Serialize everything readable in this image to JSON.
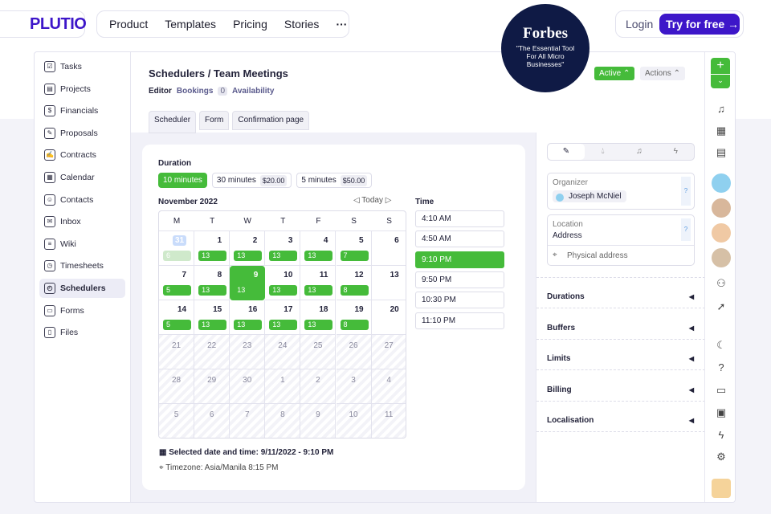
{
  "brand": {
    "logo": "PLUTIO"
  },
  "nav": {
    "items": [
      "Product",
      "Templates",
      "Pricing",
      "Stories",
      "···"
    ],
    "login": "Login",
    "try": "Try for free →"
  },
  "forbes": {
    "name": "Forbes",
    "quote": "\"The Essential Tool For All Micro Businesses\""
  },
  "sidebar": {
    "items": [
      {
        "label": "Tasks",
        "icon": "☑"
      },
      {
        "label": "Projects",
        "icon": "▤"
      },
      {
        "label": "Financials",
        "icon": "$"
      },
      {
        "label": "Proposals",
        "icon": "✎"
      },
      {
        "label": "Contracts",
        "icon": "✍"
      },
      {
        "label": "Calendar",
        "icon": "▦"
      },
      {
        "label": "Contacts",
        "icon": "☺"
      },
      {
        "label": "Inbox",
        "icon": "✉"
      },
      {
        "label": "Wiki",
        "icon": "≡"
      },
      {
        "label": "Timesheets",
        "icon": "◷"
      },
      {
        "label": "Schedulers",
        "icon": "◴"
      },
      {
        "label": "Forms",
        "icon": "▭"
      },
      {
        "label": "Files",
        "icon": "▯"
      }
    ],
    "active": "Schedulers"
  },
  "header": {
    "breadcrumb": "Schedulers / Team Meetings",
    "editor": "Editor",
    "bookings": "Bookings",
    "bookings_count": "0",
    "availability": "Availability",
    "status": "Active ⌃",
    "actions": "Actions ⌃"
  },
  "tabs": [
    "Scheduler",
    "Form",
    "Confirmation page"
  ],
  "duration": {
    "label": "Duration",
    "options": [
      {
        "label": "10 minutes",
        "price": "",
        "selected": true
      },
      {
        "label": "30 minutes",
        "price": "$20.00"
      },
      {
        "label": "5 minutes",
        "price": "$50.00"
      }
    ]
  },
  "calendar": {
    "month": "November  2022",
    "today": "Today",
    "days": [
      "M",
      "T",
      "W",
      "T",
      "F",
      "S",
      "S"
    ],
    "weeks": [
      [
        {
          "d": "31",
          "c": "6",
          "s": "prev"
        },
        {
          "d": "1",
          "c": "13"
        },
        {
          "d": "2",
          "c": "13"
        },
        {
          "d": "3",
          "c": "13"
        },
        {
          "d": "4",
          "c": "13"
        },
        {
          "d": "5",
          "c": "7"
        },
        {
          "d": "6"
        }
      ],
      [
        {
          "d": "7",
          "c": "5"
        },
        {
          "d": "8",
          "c": "13"
        },
        {
          "d": "9",
          "c": "13",
          "s": "sel"
        },
        {
          "d": "10",
          "c": "13"
        },
        {
          "d": "11",
          "c": "13"
        },
        {
          "d": "12",
          "c": "8"
        },
        {
          "d": "13"
        }
      ],
      [
        {
          "d": "14",
          "c": "5"
        },
        {
          "d": "15",
          "c": "13"
        },
        {
          "d": "16",
          "c": "13"
        },
        {
          "d": "17",
          "c": "13"
        },
        {
          "d": "18",
          "c": "13"
        },
        {
          "d": "19",
          "c": "8"
        },
        {
          "d": "20"
        }
      ],
      [
        {
          "d": "21",
          "s": "past"
        },
        {
          "d": "22",
          "s": "past"
        },
        {
          "d": "23",
          "s": "past"
        },
        {
          "d": "24",
          "s": "past"
        },
        {
          "d": "25",
          "s": "past"
        },
        {
          "d": "26",
          "s": "past"
        },
        {
          "d": "27",
          "s": "past"
        }
      ],
      [
        {
          "d": "28",
          "s": "past"
        },
        {
          "d": "29",
          "s": "past"
        },
        {
          "d": "30",
          "s": "past"
        },
        {
          "d": "1",
          "s": "past"
        },
        {
          "d": "2",
          "s": "past"
        },
        {
          "d": "3",
          "s": "past"
        },
        {
          "d": "4",
          "s": "past"
        }
      ],
      [
        {
          "d": "5",
          "s": "past"
        },
        {
          "d": "6",
          "s": "past"
        },
        {
          "d": "7",
          "s": "past"
        },
        {
          "d": "8",
          "s": "past"
        },
        {
          "d": "9",
          "s": "past"
        },
        {
          "d": "10",
          "s": "past"
        },
        {
          "d": "11",
          "s": "past"
        }
      ]
    ]
  },
  "time": {
    "label": "Time",
    "slots": [
      "4:10 AM",
      "4:50 AM",
      "9:10 PM",
      "9:50 PM",
      "10:30 PM",
      "11:10 PM"
    ],
    "selected": "9:10 PM"
  },
  "summary": {
    "selected": "Selected date and time: 9/11/2022 - 9:10 PM",
    "timezone": "Timezone: Asia/Manila 8:15 PM"
  },
  "right": {
    "organizer_label": "Organizer",
    "organizer": "Joseph McNiel",
    "location_label": "Location",
    "location": "Address",
    "physical": "Physical address",
    "sections": [
      "Durations",
      "Buffers",
      "Limits",
      "Billing",
      "Localisation"
    ]
  },
  "colors": {
    "accent": "#3d16c9",
    "green": "#45bb3a",
    "navy": "#0f1a45"
  }
}
